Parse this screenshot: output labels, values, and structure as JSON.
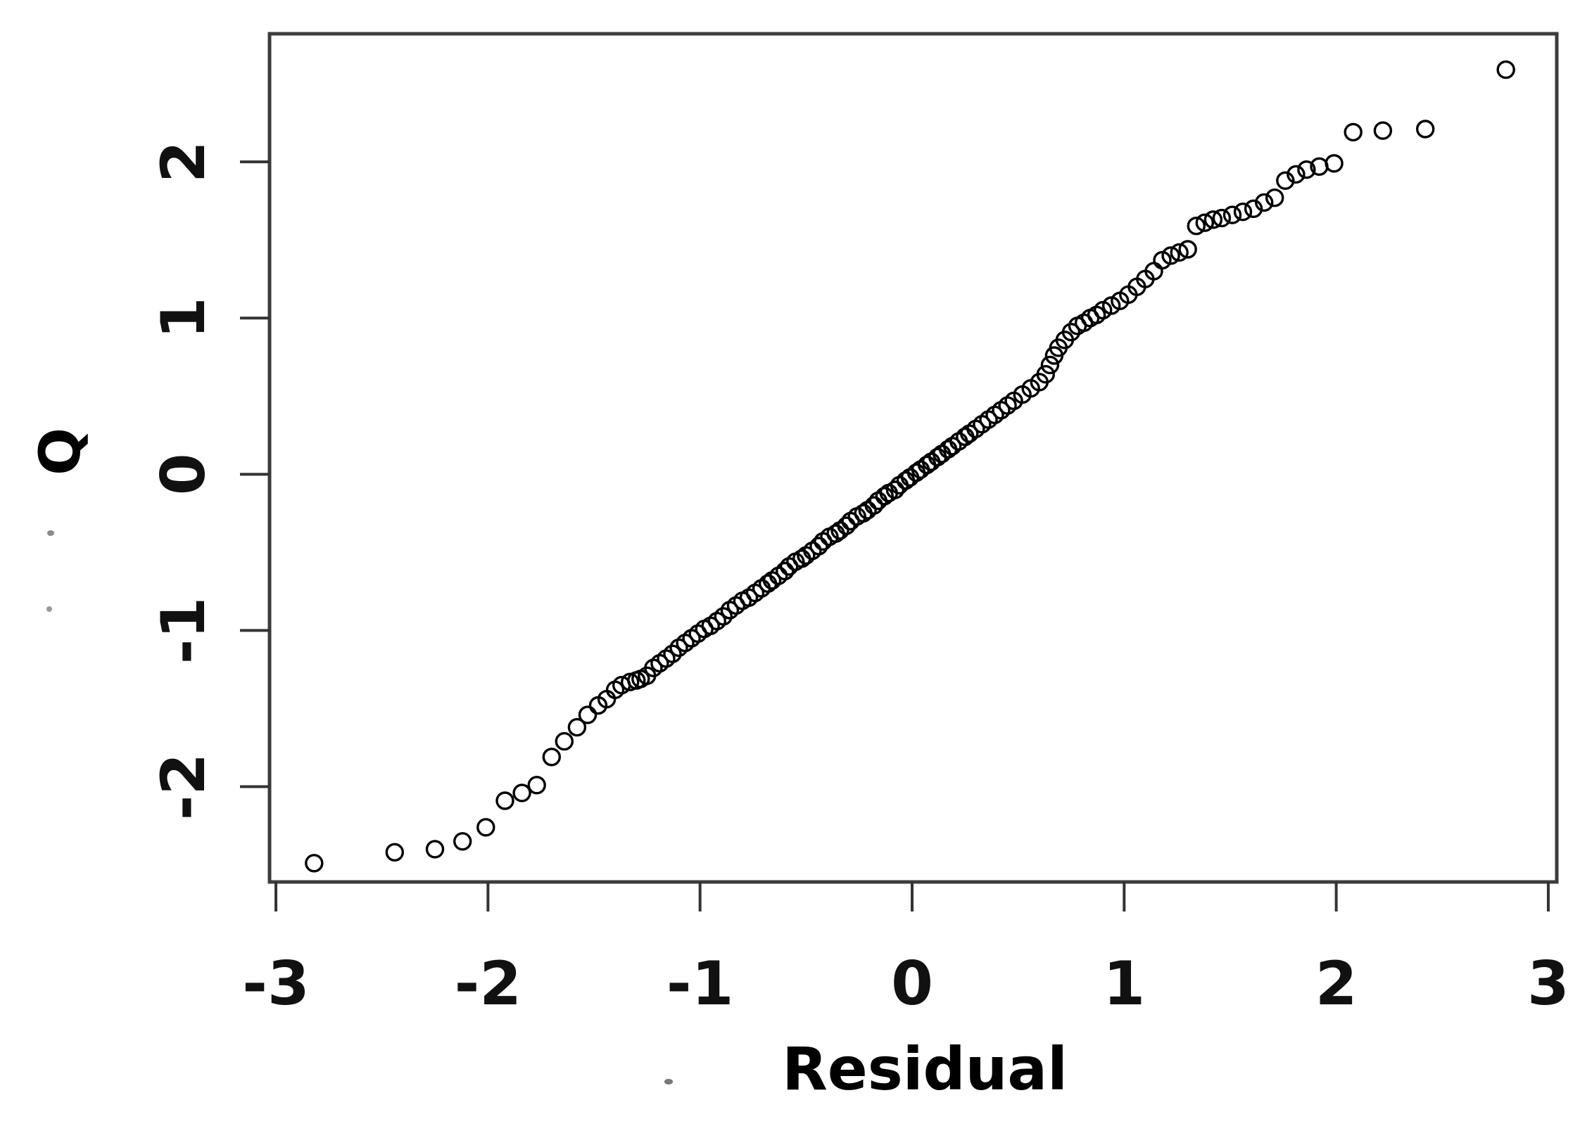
{
  "figure": {
    "background": "#ffffff",
    "axis_color": "#3c3c3c",
    "marker_color": "#000000"
  },
  "chart_data": {
    "type": "scatter",
    "title": "",
    "xlabel": "Residual",
    "ylabel": "Q",
    "xlim": [
      -3.03,
      3.04
    ],
    "ylim": [
      -2.61,
      2.82
    ],
    "x_ticks": [
      "-3",
      "-2",
      "-1",
      "0",
      "1",
      "2",
      "3"
    ],
    "x_tick_values": [
      -3,
      -2,
      -1,
      0,
      1,
      2,
      3
    ],
    "y_ticks": [
      "-2",
      "-1",
      "0",
      "1",
      "2"
    ],
    "y_tick_values": [
      -2,
      -1,
      0,
      1,
      2
    ],
    "grid": false,
    "legend": null,
    "marker": "open-circle",
    "points": [
      [
        -2.82,
        -2.49
      ],
      [
        -2.44,
        -2.42
      ],
      [
        -2.25,
        -2.4
      ],
      [
        -2.12,
        -2.35
      ],
      [
        -2.01,
        -2.26
      ],
      [
        -1.92,
        -2.09
      ],
      [
        -1.84,
        -2.04
      ],
      [
        -1.77,
        -1.99
      ],
      [
        -1.7,
        -1.81
      ],
      [
        -1.64,
        -1.71
      ],
      [
        -1.58,
        -1.62
      ],
      [
        -1.53,
        -1.54
      ],
      [
        -1.48,
        -1.48
      ],
      [
        -1.44,
        -1.44
      ],
      [
        -1.4,
        -1.38
      ],
      [
        -1.37,
        -1.35
      ],
      [
        -1.33,
        -1.33
      ],
      [
        -1.3,
        -1.32
      ],
      [
        -1.28,
        -1.31
      ],
      [
        -1.25,
        -1.29
      ],
      [
        -1.22,
        -1.24
      ],
      [
        -1.19,
        -1.21
      ],
      [
        -1.16,
        -1.18
      ],
      [
        -1.13,
        -1.15
      ],
      [
        -1.1,
        -1.11
      ],
      [
        -1.07,
        -1.08
      ],
      [
        -1.04,
        -1.05
      ],
      [
        -1.01,
        -1.02
      ],
      [
        -0.98,
        -0.99
      ],
      [
        -0.95,
        -0.97
      ],
      [
        -0.92,
        -0.94
      ],
      [
        -0.89,
        -0.91
      ],
      [
        -0.86,
        -0.87
      ],
      [
        -0.83,
        -0.84
      ],
      [
        -0.8,
        -0.81
      ],
      [
        -0.77,
        -0.79
      ],
      [
        -0.74,
        -0.76
      ],
      [
        -0.71,
        -0.73
      ],
      [
        -0.68,
        -0.7
      ],
      [
        -0.66,
        -0.68
      ],
      [
        -0.63,
        -0.65
      ],
      [
        -0.6,
        -0.62
      ],
      [
        -0.58,
        -0.59
      ],
      [
        -0.55,
        -0.56
      ],
      [
        -0.52,
        -0.54
      ],
      [
        -0.5,
        -0.52
      ],
      [
        -0.47,
        -0.49
      ],
      [
        -0.44,
        -0.46
      ],
      [
        -0.42,
        -0.43
      ],
      [
        -0.39,
        -0.4
      ],
      [
        -0.36,
        -0.38
      ],
      [
        -0.34,
        -0.36
      ],
      [
        -0.31,
        -0.33
      ],
      [
        -0.29,
        -0.3
      ],
      [
        -0.26,
        -0.27
      ],
      [
        -0.23,
        -0.25
      ],
      [
        -0.21,
        -0.23
      ],
      [
        -0.18,
        -0.2
      ],
      [
        -0.16,
        -0.17
      ],
      [
        -0.13,
        -0.14
      ],
      [
        -0.11,
        -0.12
      ],
      [
        -0.08,
        -0.1
      ],
      [
        -0.06,
        -0.07
      ],
      [
        -0.03,
        -0.04
      ],
      [
        -0.01,
        -0.02
      ],
      [
        0.02,
        0.01
      ],
      [
        0.04,
        0.03
      ],
      [
        0.07,
        0.06
      ],
      [
        0.09,
        0.08
      ],
      [
        0.12,
        0.11
      ],
      [
        0.14,
        0.13
      ],
      [
        0.17,
        0.16
      ],
      [
        0.19,
        0.18
      ],
      [
        0.22,
        0.21
      ],
      [
        0.25,
        0.24
      ],
      [
        0.27,
        0.26
      ],
      [
        0.3,
        0.29
      ],
      [
        0.33,
        0.32
      ],
      [
        0.36,
        0.35
      ],
      [
        0.39,
        0.38
      ],
      [
        0.42,
        0.41
      ],
      [
        0.45,
        0.44
      ],
      [
        0.48,
        0.47
      ],
      [
        0.52,
        0.51
      ],
      [
        0.56,
        0.55
      ],
      [
        0.6,
        0.59
      ],
      [
        0.63,
        0.64
      ],
      [
        0.65,
        0.7
      ],
      [
        0.67,
        0.76
      ],
      [
        0.69,
        0.81
      ],
      [
        0.72,
        0.86
      ],
      [
        0.75,
        0.91
      ],
      [
        0.78,
        0.95
      ],
      [
        0.81,
        0.97
      ],
      [
        0.84,
        1.0
      ],
      [
        0.87,
        1.02
      ],
      [
        0.9,
        1.05
      ],
      [
        0.94,
        1.08
      ],
      [
        0.98,
        1.11
      ],
      [
        1.02,
        1.15
      ],
      [
        1.06,
        1.2
      ],
      [
        1.1,
        1.25
      ],
      [
        1.14,
        1.3
      ],
      [
        1.18,
        1.37
      ],
      [
        1.22,
        1.4
      ],
      [
        1.26,
        1.42
      ],
      [
        1.3,
        1.44
      ],
      [
        1.34,
        1.59
      ],
      [
        1.38,
        1.61
      ],
      [
        1.42,
        1.63
      ],
      [
        1.46,
        1.64
      ],
      [
        1.51,
        1.66
      ],
      [
        1.56,
        1.68
      ],
      [
        1.61,
        1.7
      ],
      [
        1.66,
        1.74
      ],
      [
        1.71,
        1.77
      ],
      [
        1.76,
        1.88
      ],
      [
        1.81,
        1.92
      ],
      [
        1.86,
        1.95
      ],
      [
        1.92,
        1.97
      ],
      [
        1.99,
        1.99
      ],
      [
        2.08,
        2.19
      ],
      [
        2.22,
        2.2
      ],
      [
        2.42,
        2.21
      ],
      [
        2.8,
        2.59
      ]
    ]
  }
}
